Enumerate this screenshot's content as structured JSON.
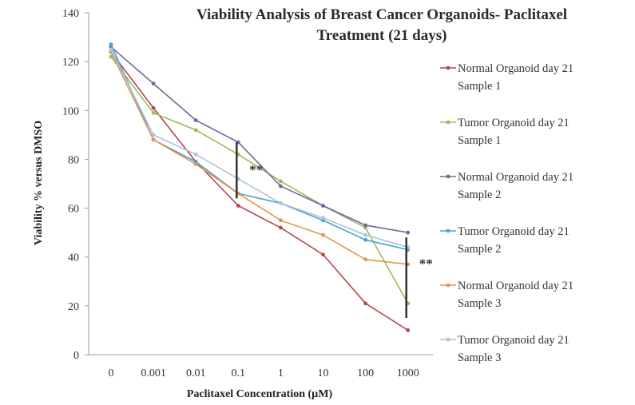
{
  "chart_data": {
    "type": "line",
    "title_lines": [
      "Viability Analysis of Breast Cancer Organoids- Paclitaxel",
      "Treatment (21 days)"
    ],
    "xlabel": "Paclitaxel Concentration (µM)",
    "ylabel": "Viability % versus DMSO",
    "categories": [
      "0",
      "0.001",
      "0.01",
      "0.1",
      "1",
      "10",
      "100",
      "1000"
    ],
    "ylim": [
      0,
      140
    ],
    "yticks": [
      0,
      20,
      40,
      60,
      80,
      100,
      120,
      140
    ],
    "grid": false,
    "legend_position": "right",
    "series": [
      {
        "name": "Normal Organoid day 21 Sample 1",
        "name_lines": [
          "Normal Organoid day 21",
          "Sample 1"
        ],
        "color": "#b5474f",
        "values": [
          124,
          101,
          79,
          61,
          52,
          41,
          21,
          10
        ]
      },
      {
        "name": "Tumor Organoid day 21 Sample 1",
        "name_lines": [
          "Tumor Organoid day 21",
          "Sample 1"
        ],
        "color": "#9cbb5a",
        "values": [
          122,
          99,
          92,
          82,
          71,
          61,
          52,
          21
        ]
      },
      {
        "name": "Normal Organoid day 21 Sample 2",
        "name_lines": [
          "Normal Organoid day 21",
          "Sample 2"
        ],
        "color": "#6d6a9c",
        "values": [
          126,
          111,
          96,
          87,
          69,
          61,
          53,
          50
        ]
      },
      {
        "name": "Tumor Organoid day 21 Sample 2",
        "name_lines": [
          "Tumor Organoid day 21",
          "Sample 2"
        ],
        "color": "#4aa3c8",
        "values": [
          127,
          88,
          79,
          66,
          62,
          55,
          47,
          43
        ]
      },
      {
        "name": "Normal Organoid day 21 Sample 3",
        "name_lines": [
          "Normal Organoid day 21",
          "Sample 3"
        ],
        "color": "#e3954c",
        "values": [
          124,
          88,
          78,
          66,
          55,
          49,
          39,
          37
        ]
      },
      {
        "name": "Tumor Organoid day 21 Sample 3",
        "name_lines": [
          "Tumor Organoid day 21",
          "Sample 3"
        ],
        "color": "#a9c3de",
        "values": [
          125,
          90,
          82,
          72,
          62,
          56,
          49,
          44
        ]
      }
    ],
    "annotations": [
      {
        "label": "**",
        "at_category": "0.1",
        "range": [
          64,
          87
        ]
      },
      {
        "label": "**",
        "at_category": "1000",
        "range": [
          15,
          48
        ]
      }
    ]
  }
}
